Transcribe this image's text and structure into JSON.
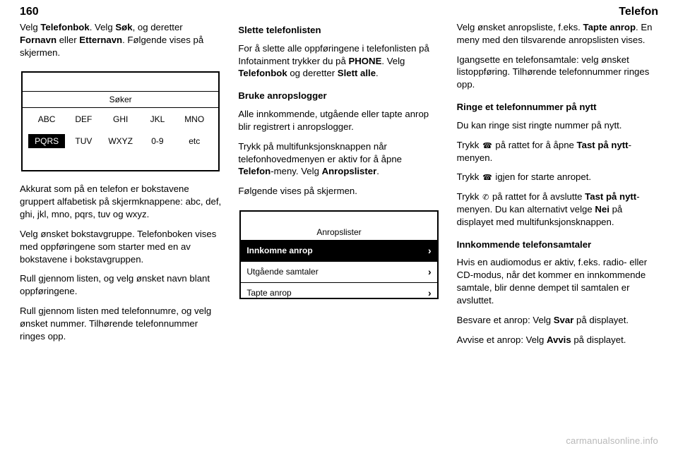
{
  "header": {
    "page_number": "160",
    "section_title": "Telefon"
  },
  "col1": {
    "p1_before_bold": "Velg ",
    "p1_bold1": "Telefonbok",
    "p1_mid1": ". Velg ",
    "p1_bold2": "Søk",
    "p1_mid2": ", og deretter ",
    "p1_bold3": "Fornavn",
    "p1_mid3": " eller ",
    "p1_bold4": "Etternavn",
    "p1_after": ". Følgende vises på skjermen.",
    "keypad": {
      "title": "Søker",
      "cells": [
        "ABC",
        "DEF",
        "GHI",
        "JKL",
        "MNO",
        "PQRS",
        "TUV",
        "WXYZ",
        "0-9",
        "etc"
      ],
      "selected_index": 5
    },
    "p2": "Akkurat som på en telefon er bokstavene gruppert alfabetisk på skjermknappene: abc, def, ghi, jkl, mno, pqrs, tuv og wxyz.",
    "p3": "Velg ønsket bokstavgruppe. Telefonboken vises med oppføringene som starter med en av bokstavene i bokstavgruppen.",
    "p4": "Rull gjennom listen, og velg ønsket navn blant oppføringene.",
    "p5": "Rull gjennom listen med telefonnumre, og velg ønsket nummer. Tilhørende telefonnummer ringes opp."
  },
  "col2": {
    "h1": "Slette telefonlisten",
    "p1_before": "For å slette alle oppføringene i telefonlisten på Infotainment trykker du på ",
    "p1_bold1": "PHONE",
    "p1_mid": ". Velg ",
    "p1_bold2": "Telefonbok",
    "p1_mid2": " og deretter ",
    "p1_bold3": "Slett alle",
    "p1_after": ".",
    "h2": "Bruke anropslogger",
    "p2": "Alle innkommende, utgående eller tapte anrop blir registrert i anropslogger.",
    "p3_before": "Trykk på multifunksjonsknappen når telefonhovedmenyen er aktiv for å åpne ",
    "p3_bold1": "Telefon",
    "p3_mid": "-meny. Velg ",
    "p3_bold2": "Anropslister",
    "p3_after": ".",
    "p4": "Følgende vises på skjermen.",
    "calllog": {
      "title": "Anropslister",
      "items": [
        "Innkomne anrop",
        "Utgående samtaler",
        "Tapte anrop"
      ],
      "selected_index": 0
    }
  },
  "col3": {
    "p1_before": "Velg ønsket anropsliste, f.eks. ",
    "p1_bold": "Tapte anrop",
    "p1_after": ". En meny med den tilsvarende anropslisten vises.",
    "p2": "Igangsette en telefonsamtale: velg ønsket listoppføring. Tilhørende telefonnummer ringes opp.",
    "h1": "Ringe et telefonnummer på nytt",
    "p3": "Du kan ringe sist ringte nummer på nytt.",
    "p4_before": "Trykk ",
    "p4_mid": " på rattet for å åpne ",
    "p4_bold": "Tast på nytt",
    "p4_after": "-menyen.",
    "p5_before": "Trykk ",
    "p5_after": " igjen for starte anropet.",
    "p6_before": "Trykk ",
    "p6_mid": " på rattet for å avslutte ",
    "p6_bold": "Tast på nytt",
    "p6_mid2": "-menyen. Du kan alternativt velge ",
    "p6_bold2": "Nei",
    "p6_after": " på displayet med multifunksjonsknappen.",
    "h2": "Innkommende telefonsamtaler",
    "p7": "Hvis en audiomodus er aktiv, f.eks. radio- eller CD-modus, når det kommer en innkommende samtale, blir denne dempet til samtalen er avsluttet.",
    "p8_before": "Besvare et anrop: Velg ",
    "p8_bold": "Svar",
    "p8_after": " på displayet.",
    "p9_before": "Avvise et anrop: Velg ",
    "p9_bold": "Avvis",
    "p9_after": " på displayet."
  },
  "watermark": "carmanualsonline.info"
}
